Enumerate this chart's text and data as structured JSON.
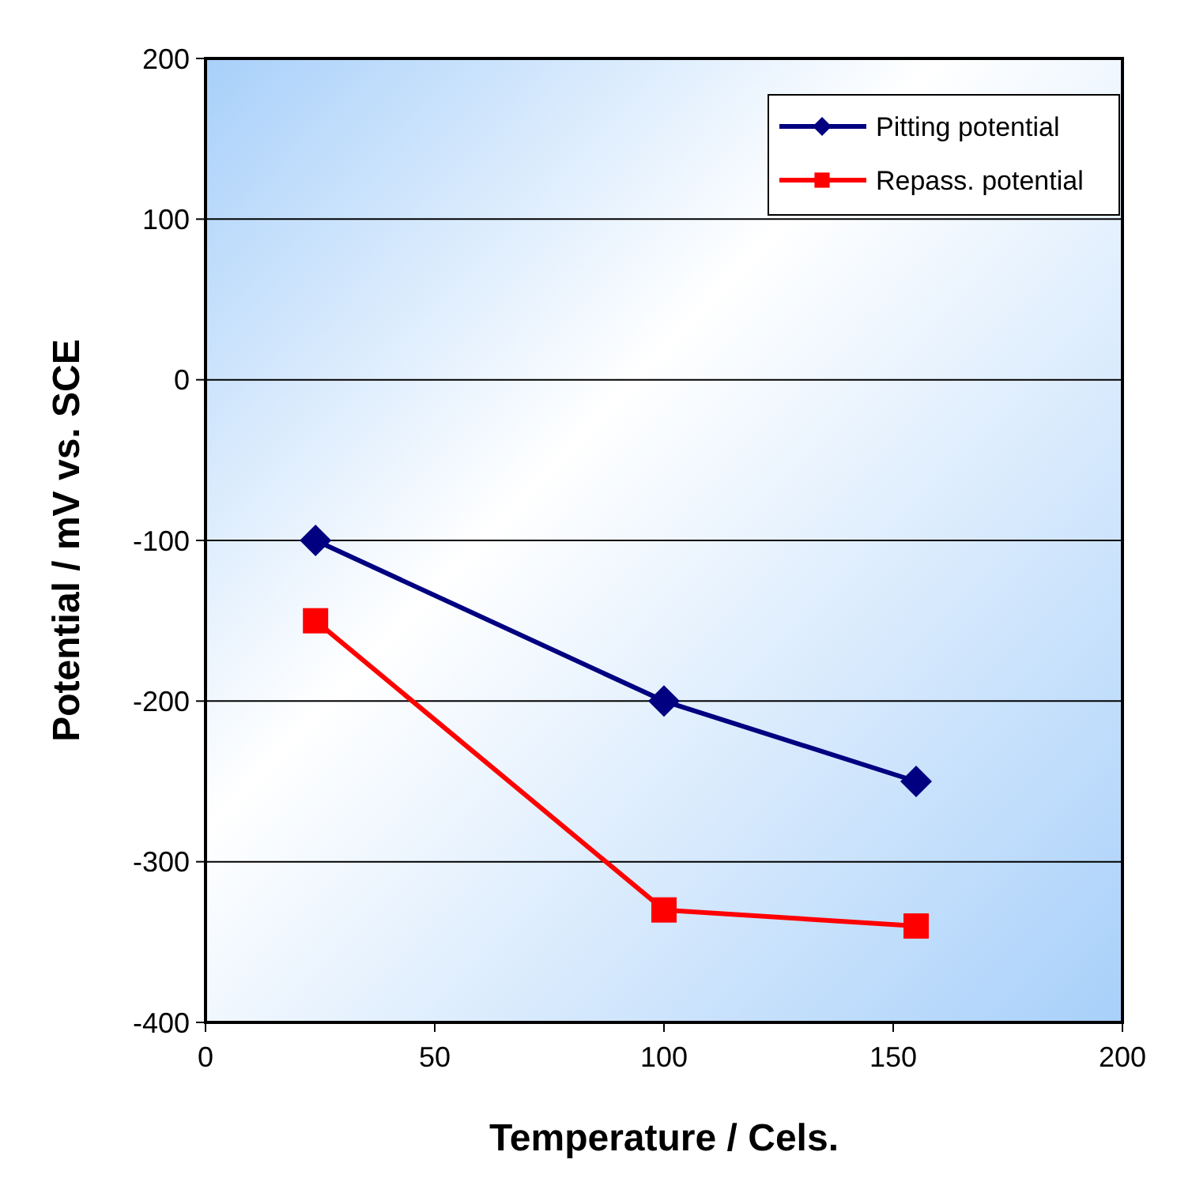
{
  "chart_data": {
    "type": "line",
    "xlabel": "Temperature / Cels.",
    "ylabel": "Potential / mV vs. SCE",
    "xlim": [
      0,
      200
    ],
    "xticks": [
      0,
      50,
      100,
      150,
      200
    ],
    "ylim": [
      -400,
      200
    ],
    "yticks": [
      -400,
      -300,
      -200,
      -100,
      0,
      100,
      200
    ],
    "grid": "y",
    "legend": "top right",
    "line_style": "solid",
    "series": [
      {
        "name": "Pitting potential",
        "color": "#000080",
        "marker": "diamond",
        "x": [
          24,
          100,
          155
        ],
        "values": [
          -100,
          -200,
          -250
        ]
      },
      {
        "name": "Repass. potential",
        "color": "#ff0000",
        "marker": "square",
        "x": [
          24,
          100,
          155
        ],
        "values": [
          -150,
          -330,
          -340
        ]
      }
    ]
  }
}
